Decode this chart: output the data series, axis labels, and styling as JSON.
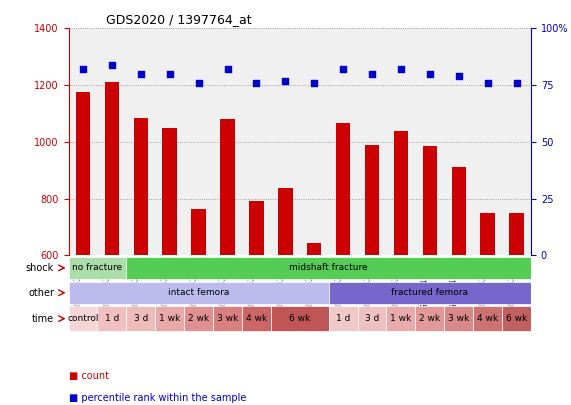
{
  "title": "GDS2020 / 1397764_at",
  "samples": [
    "GSM74213",
    "GSM74214",
    "GSM74215",
    "GSM74217",
    "GSM74219",
    "GSM74221",
    "GSM74223",
    "GSM74225",
    "GSM74227",
    "GSM74216",
    "GSM74218",
    "GSM74220",
    "GSM74222",
    "GSM74224",
    "GSM74226",
    "GSM74228"
  ],
  "counts": [
    1175,
    1210,
    1085,
    1050,
    762,
    1080,
    793,
    837,
    645,
    1068,
    990,
    1040,
    985,
    910,
    750,
    750
  ],
  "percentiles": [
    82,
    84,
    80,
    80,
    76,
    82,
    76,
    77,
    76,
    82,
    80,
    82,
    80,
    79,
    76,
    76
  ],
  "ylim_left": [
    600,
    1400
  ],
  "ylim_right": [
    0,
    100
  ],
  "yticks_left": [
    600,
    800,
    1000,
    1200,
    1400
  ],
  "yticks_right": [
    0,
    25,
    50,
    75,
    100
  ],
  "bar_color": "#cc0000",
  "dot_color": "#0000cc",
  "shock_labels": [
    {
      "text": "no fracture",
      "start": 0,
      "end": 2,
      "color": "#aaddaa"
    },
    {
      "text": "midshaft fracture",
      "start": 2,
      "end": 16,
      "color": "#55cc55"
    }
  ],
  "other_labels": [
    {
      "text": "intact femora",
      "start": 0,
      "end": 9,
      "color": "#bbbbee"
    },
    {
      "text": "fractured femora",
      "start": 9,
      "end": 16,
      "color": "#7766cc"
    }
  ],
  "time_labels": [
    {
      "text": "control",
      "start": 0,
      "end": 1,
      "color": "#f5d5d5"
    },
    {
      "text": "1 d",
      "start": 1,
      "end": 2,
      "color": "#f0c0c0"
    },
    {
      "text": "3 d",
      "start": 2,
      "end": 3,
      "color": "#eebbbb"
    },
    {
      "text": "1 wk",
      "start": 3,
      "end": 4,
      "color": "#e8a8a8"
    },
    {
      "text": "2 wk",
      "start": 4,
      "end": 5,
      "color": "#e09090"
    },
    {
      "text": "3 wk",
      "start": 5,
      "end": 6,
      "color": "#d88080"
    },
    {
      "text": "4 wk",
      "start": 6,
      "end": 7,
      "color": "#cc6666"
    },
    {
      "text": "6 wk",
      "start": 7,
      "end": 9,
      "color": "#c05555"
    },
    {
      "text": "1 d",
      "start": 9,
      "end": 10,
      "color": "#f0c8c8"
    },
    {
      "text": "3 d",
      "start": 10,
      "end": 11,
      "color": "#eec0c0"
    },
    {
      "text": "1 wk",
      "start": 11,
      "end": 12,
      "color": "#e8aaaa"
    },
    {
      "text": "2 wk",
      "start": 12,
      "end": 13,
      "color": "#e09898"
    },
    {
      "text": "3 wk",
      "start": 13,
      "end": 14,
      "color": "#d88888"
    },
    {
      "text": "4 wk",
      "start": 14,
      "end": 15,
      "color": "#cc7272"
    },
    {
      "text": "6 wk",
      "start": 15,
      "end": 16,
      "color": "#c06060"
    }
  ],
  "row_labels": [
    "shock",
    "other",
    "time"
  ],
  "row_arrow_color": "#cc0000",
  "grid_color": "#888888",
  "bg_color": "#f0f0f0"
}
